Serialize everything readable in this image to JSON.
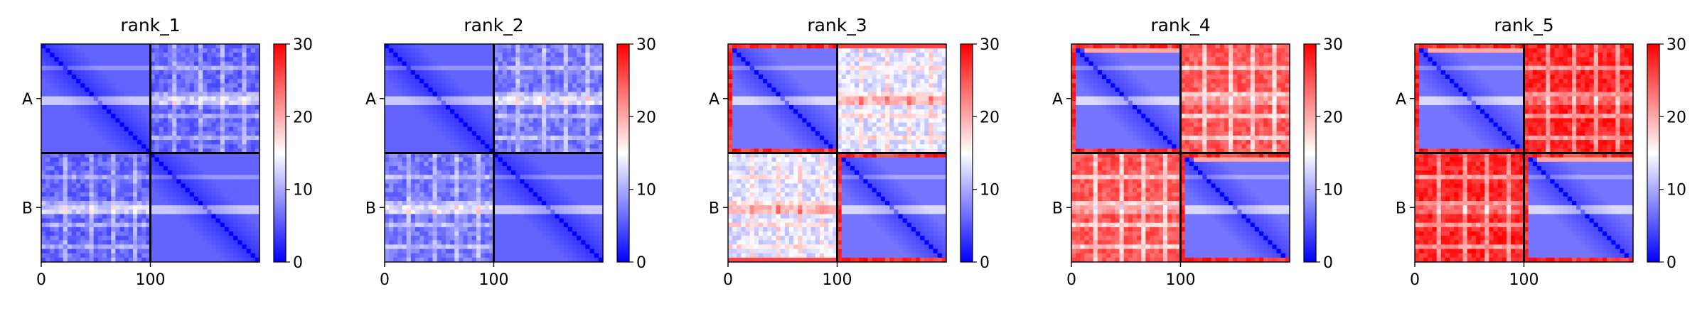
{
  "chart_data": {
    "type": "heatmap",
    "colormap": {
      "name": "bwr",
      "low": "#0000ff",
      "mid": "#ffffff",
      "high": "#ff0000",
      "vmin": 0,
      "vmax": 30,
      "ticks": [
        0,
        10,
        20,
        30
      ]
    },
    "axes": {
      "x_ticks": [
        0,
        100
      ],
      "xlim": [
        0,
        200
      ],
      "ylim": [
        0,
        200
      ],
      "y_tick_labels": [
        "A",
        "B"
      ],
      "chain_break": 100,
      "chain_break_color": "#000000"
    },
    "panels": [
      {
        "title": "rank_1",
        "intra_chain_value": 3,
        "inter_chain_value": 6
      },
      {
        "title": "rank_2",
        "intra_chain_value": 3,
        "inter_chain_value": 7
      },
      {
        "title": "rank_3",
        "intra_chain_value": 4,
        "inter_chain_value": 13
      },
      {
        "title": "rank_4",
        "intra_chain_value": 4,
        "inter_chain_value": 25
      },
      {
        "title": "rank_5",
        "intra_chain_value": 4,
        "inter_chain_value": 28
      }
    ]
  }
}
